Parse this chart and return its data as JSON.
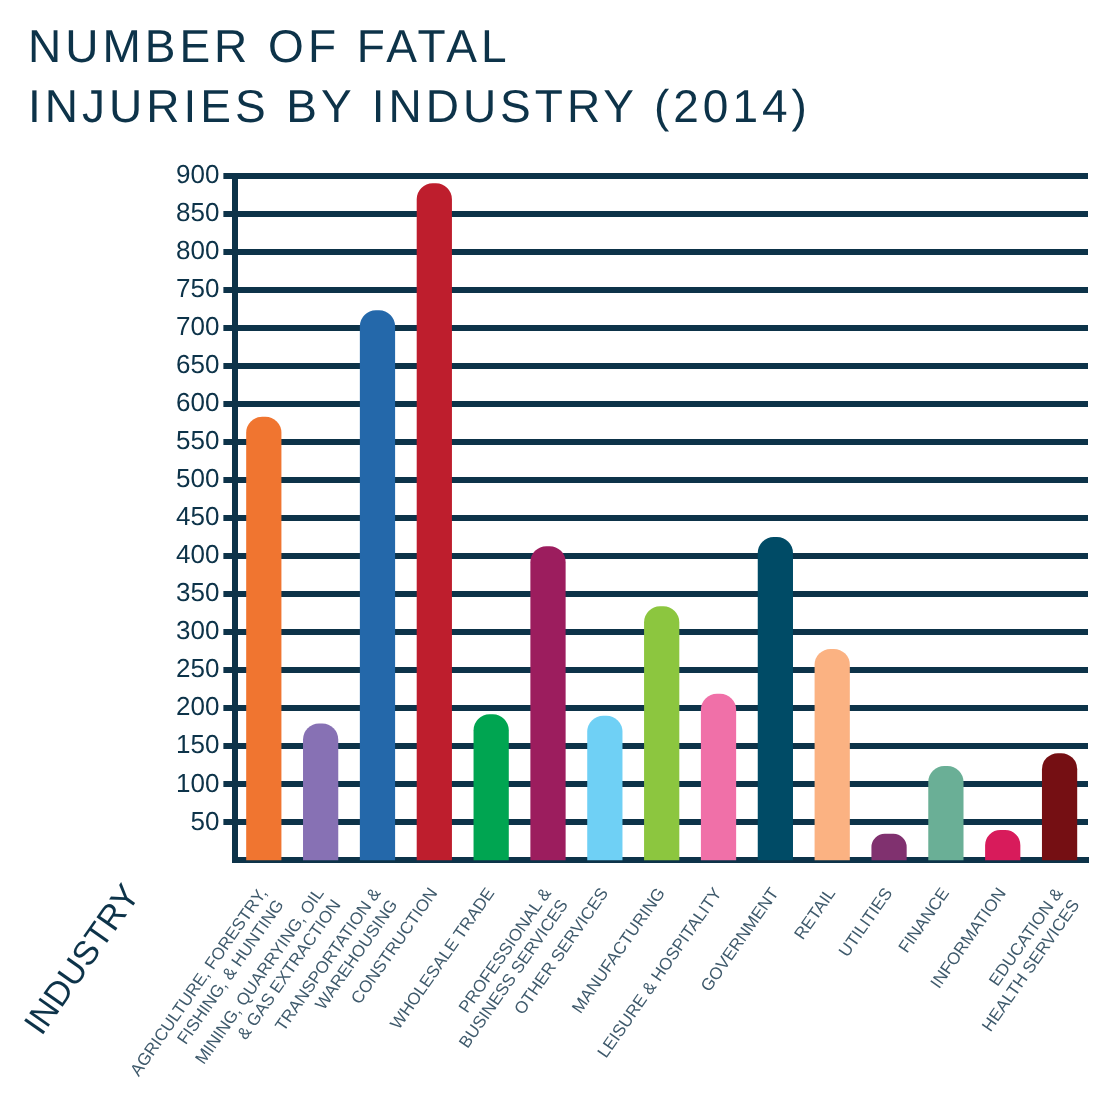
{
  "chart_data": {
    "type": "bar",
    "title": "NUMBER OF FATAL\nINJURIES BY INDUSTRY (2014)",
    "xlabel": "INDUSTRY",
    "categories": [
      "AGRICULTURE, FORESTRY,\nFISHING, & HUNTING",
      "MINING, QUARRYING, OIL\n& GAS EXTRACTION",
      "TRANSPORTATION &\nWAREHOUSING",
      "CONSTRUCTION",
      "WHOLESALE TRADE",
      "PROFESSIONAL &\nBUSINESS SERVICES",
      "OTHER SERVICES",
      "MANUFACTURING",
      "LEISURE & HOSPITALITY",
      "GOVERNMENT",
      "RETAIL",
      "UTILITIES",
      "FINANCE",
      "INFORMATION",
      "EDUCATION &\nHEALTH SERVICES"
    ],
    "values": [
      583,
      180,
      723,
      890,
      192,
      413,
      190,
      334,
      219,
      425,
      278,
      35,
      124,
      40,
      141
    ],
    "colors": [
      "#f07530",
      "#8771b4",
      "#2468aa",
      "#be1e2d",
      "#00a551",
      "#9c1d5e",
      "#6fd0f5",
      "#8cc63f",
      "#f070a8",
      "#004b66",
      "#fbb282",
      "#80316f",
      "#6aaf96",
      "#d81b5b",
      "#750f13"
    ],
    "ylim": [
      0,
      900
    ],
    "yticks": [
      50,
      100,
      150,
      200,
      250,
      300,
      350,
      400,
      450,
      500,
      550,
      600,
      650,
      700,
      750,
      800,
      850,
      900
    ],
    "grid": "y"
  }
}
